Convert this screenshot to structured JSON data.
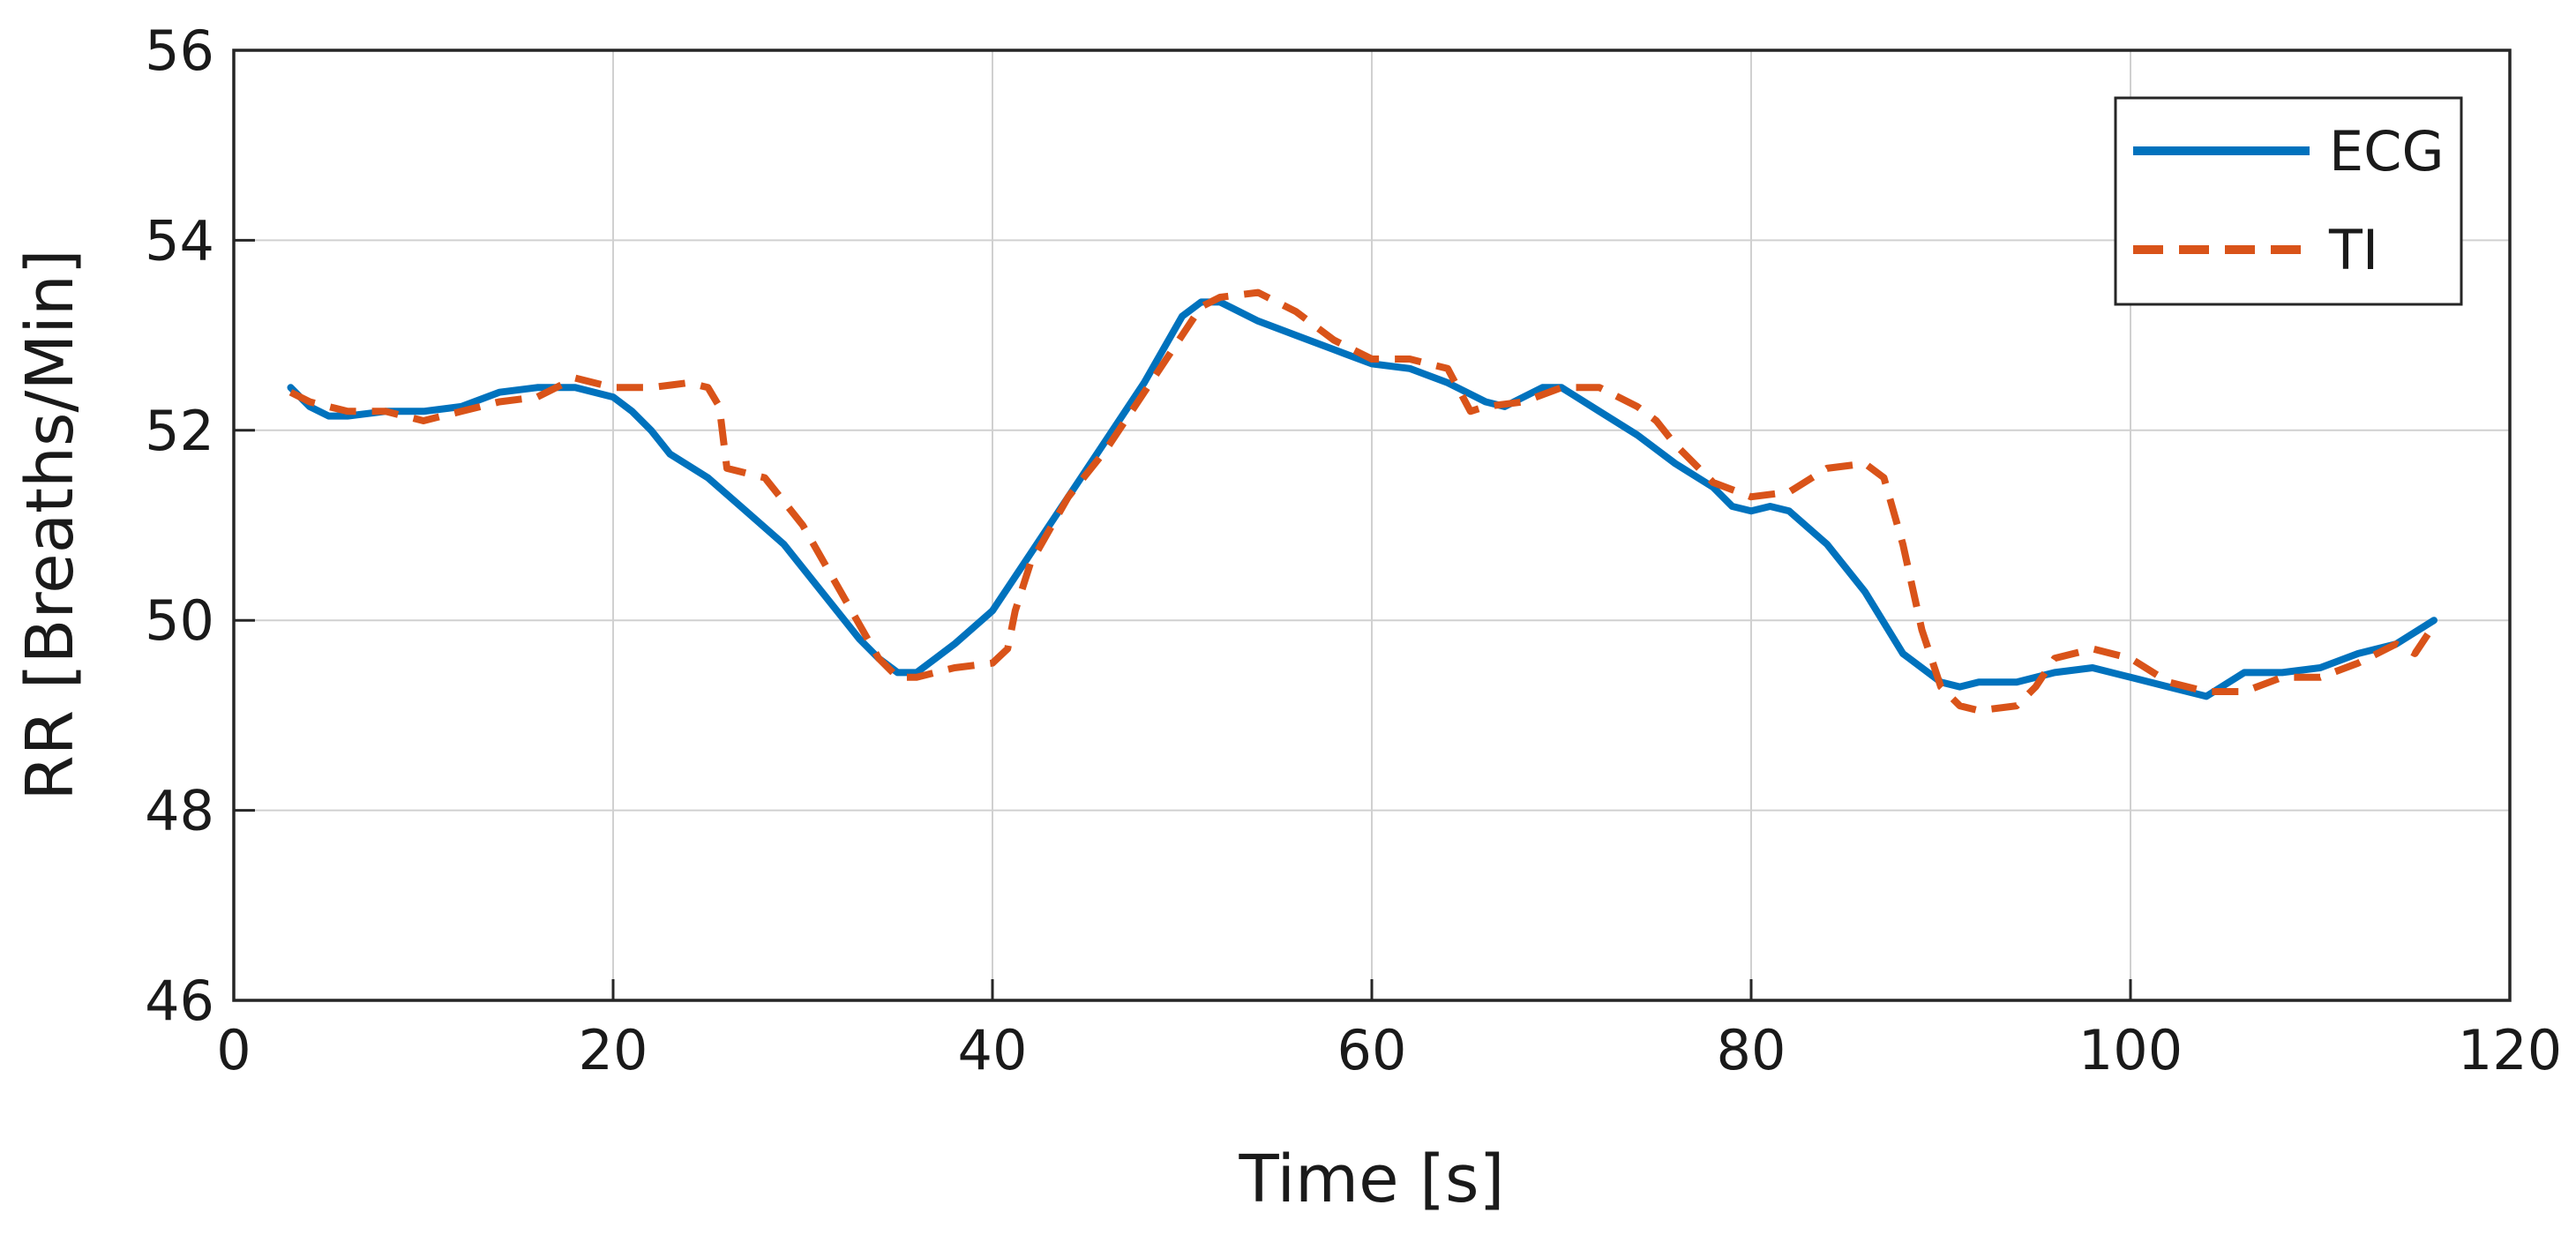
{
  "chart_data": {
    "type": "line",
    "title": "",
    "xlabel": "Time [s]",
    "ylabel": "RR [Breaths/Min]",
    "xlim": [
      0,
      120
    ],
    "ylim": [
      46,
      56
    ],
    "xticks": [
      0,
      20,
      40,
      60,
      80,
      100,
      120
    ],
    "yticks": [
      46,
      48,
      50,
      52,
      54,
      56
    ],
    "grid": true,
    "legend_position": "top-right",
    "series": [
      {
        "name": "ECG",
        "color": "#0072BD",
        "style": "solid",
        "x": [
          3,
          4,
          5,
          6,
          8,
          10,
          12,
          14,
          16,
          18,
          20,
          21,
          22,
          23,
          25,
          27,
          29,
          31,
          33,
          34,
          35,
          36,
          37,
          38,
          40,
          42,
          44,
          46,
          48,
          50,
          51,
          52,
          54,
          56,
          58,
          60,
          62,
          64,
          66,
          67,
          68,
          69,
          70,
          72,
          74,
          76,
          78,
          79,
          80,
          81,
          82,
          84,
          86,
          88,
          90,
          91,
          92,
          94,
          96,
          98,
          100,
          102,
          104,
          106,
          108,
          110,
          112,
          114,
          116
        ],
        "values": [
          52.45,
          52.25,
          52.15,
          52.15,
          52.2,
          52.2,
          52.25,
          52.4,
          52.45,
          52.45,
          52.35,
          52.2,
          52.0,
          51.75,
          51.5,
          51.15,
          50.8,
          50.3,
          49.8,
          49.6,
          49.45,
          49.45,
          49.6,
          49.75,
          50.1,
          50.7,
          51.3,
          51.9,
          52.5,
          53.2,
          53.35,
          53.35,
          53.15,
          53.0,
          52.85,
          52.7,
          52.65,
          52.5,
          52.3,
          52.25,
          52.35,
          52.45,
          52.45,
          52.2,
          51.95,
          51.65,
          51.4,
          51.2,
          51.15,
          51.2,
          51.15,
          50.8,
          50.3,
          49.65,
          49.35,
          49.3,
          49.35,
          49.35,
          49.45,
          49.5,
          49.4,
          49.3,
          49.2,
          49.45,
          49.45,
          49.5,
          49.65,
          49.75,
          50.0
        ]
      },
      {
        "name": "TI",
        "color": "#D95319",
        "style": "dashed",
        "x": [
          3,
          4,
          6,
          8,
          10,
          11,
          12,
          14,
          16,
          17,
          18,
          20,
          22,
          24,
          25,
          25.6,
          26,
          28,
          30,
          32,
          34,
          35,
          36,
          38,
          40,
          40.8,
          41.2,
          42,
          44,
          46,
          47,
          48,
          50,
          51,
          52,
          54,
          56,
          58,
          60,
          62,
          64,
          64.8,
          65.2,
          66,
          68,
          70,
          72,
          74,
          75,
          76,
          78,
          80,
          82,
          84,
          86,
          87,
          88,
          89,
          90,
          91,
          92,
          94,
          95,
          96,
          98,
          100,
          102,
          104,
          106,
          108,
          110,
          112,
          114,
          115,
          116
        ],
        "values": [
          52.4,
          52.3,
          52.2,
          52.2,
          52.1,
          52.15,
          52.2,
          52.3,
          52.35,
          52.45,
          52.55,
          52.45,
          52.45,
          52.5,
          52.45,
          52.25,
          51.6,
          51.5,
          51.0,
          50.3,
          49.6,
          49.4,
          49.4,
          49.5,
          49.55,
          49.7,
          50.1,
          50.6,
          51.3,
          51.8,
          52.1,
          52.4,
          53.0,
          53.3,
          53.4,
          53.45,
          53.25,
          52.95,
          52.75,
          52.75,
          52.65,
          52.35,
          52.2,
          52.25,
          52.3,
          52.45,
          52.45,
          52.25,
          52.1,
          51.85,
          51.45,
          51.3,
          51.35,
          51.6,
          51.65,
          51.5,
          50.8,
          49.9,
          49.3,
          49.1,
          49.05,
          49.1,
          49.3,
          49.6,
          49.7,
          49.6,
          49.35,
          49.25,
          49.25,
          49.4,
          49.4,
          49.55,
          49.75,
          49.65,
          49.95
        ]
      }
    ]
  }
}
